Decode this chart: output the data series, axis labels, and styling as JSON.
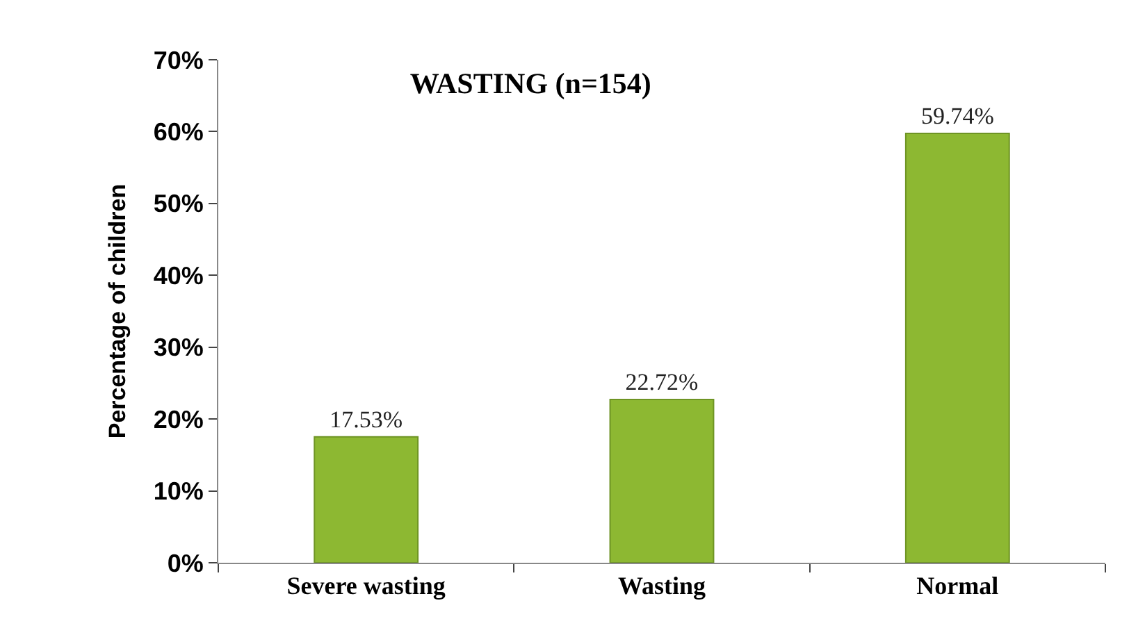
{
  "chart_data": {
    "type": "bar",
    "title": "WASTING (n=154)",
    "ylabel": "Percentage of children",
    "categories": [
      "Severe wasting",
      "Wasting",
      "Normal"
    ],
    "values": [
      17.53,
      22.72,
      59.74
    ],
    "value_labels": [
      "17.53%",
      "22.72%",
      "59.74%"
    ],
    "color": "#8db832",
    "ylim": [
      0,
      70
    ],
    "yticks": [
      {
        "value": 0,
        "label": "0%"
      },
      {
        "value": 10,
        "label": "10%"
      },
      {
        "value": 20,
        "label": "20%"
      },
      {
        "value": 30,
        "label": "30%"
      },
      {
        "value": 40,
        "label": "40%"
      },
      {
        "value": 50,
        "label": "50%"
      },
      {
        "value": 60,
        "label": "60%"
      },
      {
        "value": 70,
        "label": "70%"
      }
    ],
    "legend": false
  }
}
